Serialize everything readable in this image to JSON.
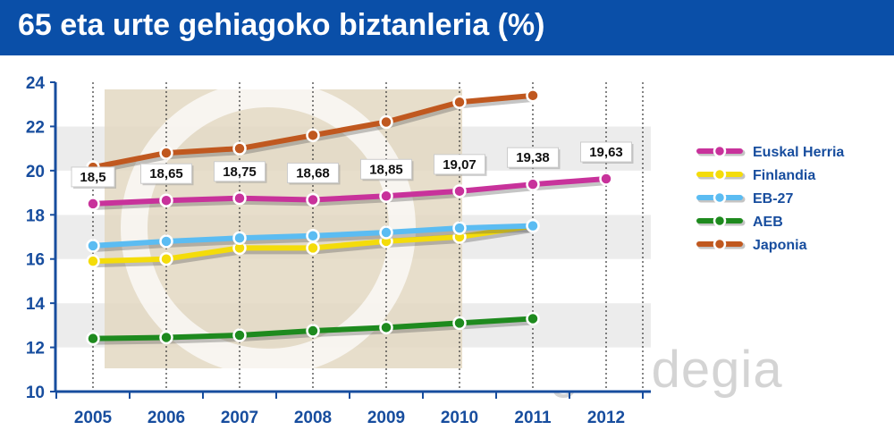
{
  "title": "65 eta urte gehiagoko biztanleria (%)",
  "watermark": "gaindegia",
  "colors": {
    "title_bg": "#0a4fa8",
    "axis": "#174d9e",
    "Euskal Herria": "#c8329b",
    "Finlandia": "#f4dc0a",
    "EB-27": "#5bbcf2",
    "AEB": "#1e8a1e",
    "Japonia": "#c0581f"
  },
  "chart_data": {
    "type": "line",
    "title": "65 eta urte gehiagoko biztanleria (%)",
    "xlabel": "",
    "ylabel": "",
    "categories": [
      "2005",
      "2006",
      "2007",
      "2008",
      "2009",
      "2010",
      "2011",
      "2012"
    ],
    "y_ticks": [
      "10",
      "12",
      "14",
      "16",
      "18",
      "20",
      "22",
      "24"
    ],
    "ylim": [
      10,
      24
    ],
    "grid": "vertical dotted lines, alternating horizontal bands",
    "legend_position": "right",
    "series": [
      {
        "name": "Euskal Herria",
        "values": [
          18.5,
          18.65,
          18.75,
          18.68,
          18.85,
          19.07,
          19.38,
          19.63
        ],
        "labels": [
          "18,5",
          "18,65",
          "18,75",
          "18,68",
          "18,85",
          "19,07",
          "19,38",
          "19,63"
        ]
      },
      {
        "name": "Finlandia",
        "values": [
          15.9,
          16.0,
          16.5,
          16.5,
          16.8,
          17.0,
          17.5,
          null
        ]
      },
      {
        "name": "EB-27",
        "values": [
          16.6,
          16.8,
          16.95,
          17.05,
          17.2,
          17.4,
          17.5,
          null
        ]
      },
      {
        "name": "AEB",
        "values": [
          12.4,
          12.45,
          12.55,
          12.75,
          12.9,
          13.1,
          13.3,
          null
        ]
      },
      {
        "name": "Japonia",
        "values": [
          20.15,
          20.8,
          21.0,
          21.6,
          22.2,
          23.1,
          23.4,
          null
        ]
      }
    ]
  }
}
